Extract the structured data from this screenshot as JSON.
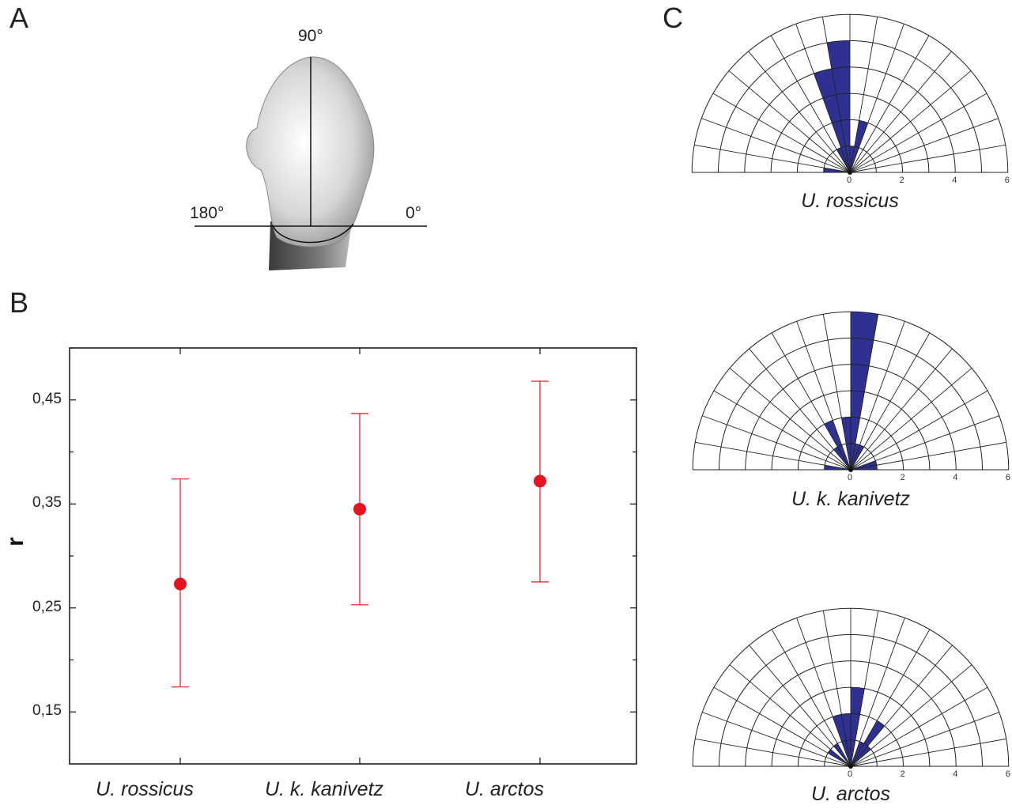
{
  "panels": {
    "a": {
      "letter": "A",
      "angle_90": "90°",
      "angle_180": "180°",
      "angle_0": "0°"
    },
    "b": {
      "letter": "B"
    },
    "c": {
      "letter": "C"
    }
  },
  "colors": {
    "error_point": "#e3141b",
    "rose_fill": "#2e3192",
    "grid": "#222222"
  },
  "chart_data": [
    {
      "type": "scatter",
      "title": "",
      "xlabel": "",
      "ylabel": "r",
      "categories": [
        "U. rossicus",
        "U. k. kanivetz",
        "U. arctos"
      ],
      "values": [
        0.273,
        0.345,
        0.372
      ],
      "error_low": [
        0.174,
        0.253,
        0.275
      ],
      "error_high": [
        0.374,
        0.437,
        0.468
      ],
      "ylim": [
        0.1,
        0.5
      ],
      "yticks": [
        0.15,
        0.25,
        0.35,
        0.45
      ],
      "ytick_labels": [
        "0,15",
        "0,25",
        "0,35",
        "0,45"
      ],
      "grid": false
    },
    {
      "type": "rose",
      "title": "U. rossicus",
      "sector_deg": 10,
      "rlim": [
        0,
        6
      ],
      "rtick_labels": [
        "0",
        "2",
        "4",
        "6"
      ],
      "sectors_start_deg": [
        70,
        80,
        90,
        100,
        110,
        170
      ],
      "counts": [
        2,
        1,
        5,
        4,
        1,
        1
      ]
    },
    {
      "type": "rose",
      "title": "U. k. kanivetz",
      "sector_deg": 10,
      "rlim": [
        0,
        6
      ],
      "rtick_labels": [
        "0",
        "2",
        "4",
        "6"
      ],
      "sectors_start_deg": [
        0,
        10,
        60,
        70,
        80,
        90,
        110,
        120,
        170
      ],
      "counts": [
        1,
        1,
        1,
        1,
        6,
        2,
        2,
        1,
        1
      ]
    },
    {
      "type": "rose",
      "title": "U. arctos",
      "sector_deg": 10,
      "rlim": [
        0,
        6
      ],
      "rtick_labels": [
        "0",
        "2",
        "4",
        "6"
      ],
      "sectors_start_deg": [
        40,
        50,
        60,
        80,
        90,
        100,
        120,
        140
      ],
      "counts": [
        1,
        2,
        1,
        3,
        2,
        2,
        1,
        1
      ]
    }
  ]
}
